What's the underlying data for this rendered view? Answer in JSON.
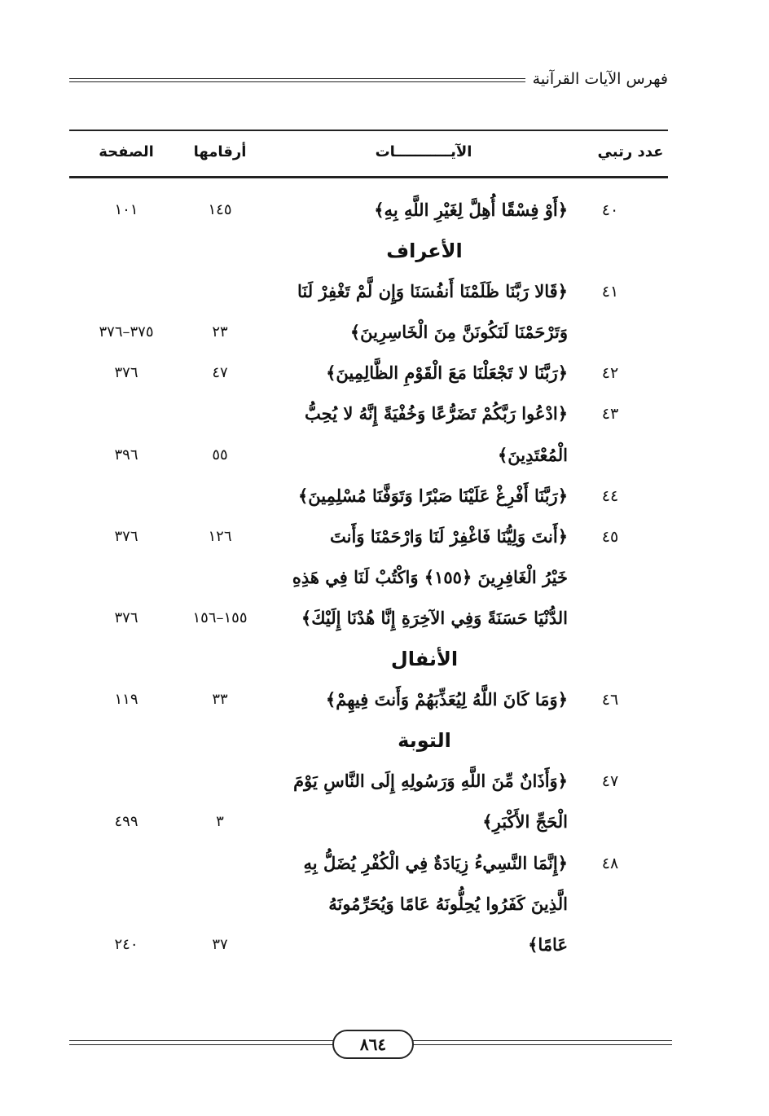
{
  "header": {
    "running_title": "فهرس الآيات القرآنية"
  },
  "table": {
    "columns": {
      "rank": "عدد رتبي",
      "verses": "الآيـــــــــــات",
      "verse_numbers": "أرقامها",
      "page": "الصفحة"
    },
    "rows": [
      {
        "num": "٤٠",
        "text": "﴿أَوْ فِسْقًا أُهِلَّ لِغَيْرِ اللَّهِ بِهِ﴾",
        "verses": "١٤٥",
        "page": "١٠١"
      },
      {
        "heading": "الأعراف"
      },
      {
        "num": "٤١",
        "text": "﴿قَالا رَبَّنَا ظَلَمْنَا أَنفُسَنَا وَإِن لَّمْ تَغْفِرْ لَنَا"
      },
      {
        "text": "وَتَرْحَمْنَا لَنَكُونَنَّ مِنَ الْخَاسِرِينَ﴾",
        "verses": "٢٣",
        "page": "٣٧٥–٣٧٦"
      },
      {
        "num": "٤٢",
        "text": "﴿رَبَّنَا لا تَجْعَلْنَا مَعَ الْقَوْمِ الظَّالِمِينَ﴾",
        "verses": "٤٧",
        "page": "٣٧٦"
      },
      {
        "num": "٤٣",
        "text": "﴿ادْعُوا رَبَّكُمْ تَضَرُّعًا وَخُفْيَةً إِنَّهُ لا يُحِبُّ"
      },
      {
        "text": "الْمُعْتَدِينَ﴾",
        "verses": "٥٥",
        "page": "٣٩٦"
      },
      {
        "num": "٤٤",
        "text": "﴿رَبَّنَا أَفْرِغْ عَلَيْنَا صَبْرًا وَتَوَفَّنَا مُسْلِمِينَ﴾"
      },
      {
        "num": "٤٥",
        "text": "﴿أَنتَ وَلِيُّنَا فَاغْفِرْ لَنَا وَارْحَمْنَا وَأَنتَ",
        "verses": "١٢٦",
        "page": "٣٧٦"
      },
      {
        "text": "خَيْرُ الْغَافِرِينَ ﴿١٥٥﴾ وَاكْتُبْ لَنَا فِي هَذِهِ"
      },
      {
        "text": "الدُّنْيَا حَسَنَةً وَفِي الآخِرَةِ إِنَّا هُدْنَا إِلَيْكَ﴾",
        "verses": "١٥٥–١٥٦",
        "page": "٣٧٦"
      },
      {
        "heading": "الأنفال"
      },
      {
        "num": "٤٦",
        "text": "﴿وَمَا كَانَ اللَّهُ لِيُعَذِّبَهُمْ وَأَنتَ فِيهِمْ﴾",
        "verses": "٣٣",
        "page": "١١٩"
      },
      {
        "heading": "التوبة"
      },
      {
        "num": "٤٧",
        "text": "﴿وَأَذَانٌ مِّنَ اللَّهِ وَرَسُولِهِ إِلَى النَّاسِ يَوْمَ"
      },
      {
        "text": "الْحَجِّ الأَكْبَرِ﴾",
        "verses": "٣",
        "page": "٤٩٩"
      },
      {
        "num": "٤٨",
        "text": "﴿إِنَّمَا النَّسِيءُ زِيَادَةٌ فِي الْكُفْرِ يُضَلُّ بِهِ"
      },
      {
        "text": "الَّذِينَ كَفَرُوا يُحِلُّونَهُ عَامًا وَيُحَرِّمُونَهُ"
      },
      {
        "text": "عَامًا﴾",
        "verses": "٣٧",
        "page": "٢٤٠"
      }
    ]
  },
  "footer": {
    "page_number": "٨٦٤"
  }
}
